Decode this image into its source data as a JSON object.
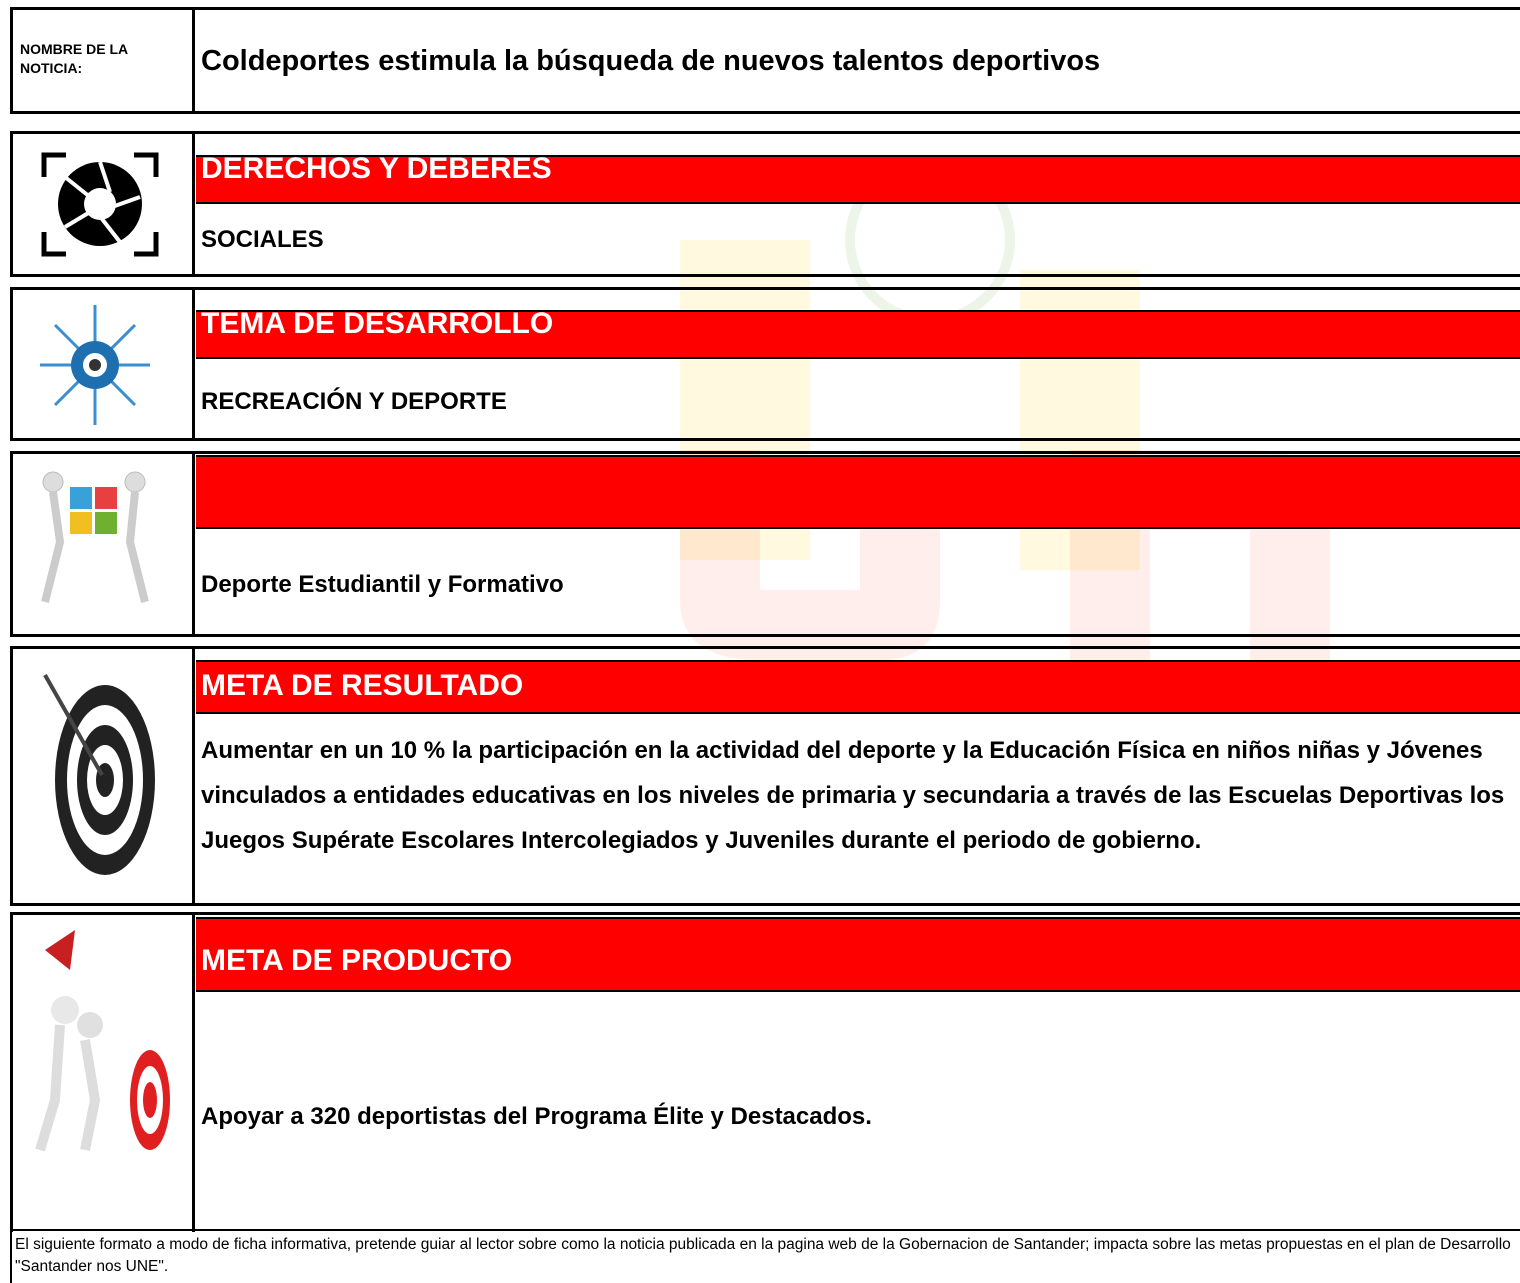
{
  "header": {
    "label": "NOMBRE DE LA NOTICIA:",
    "title": "Coldeportes estimula la búsqueda de nuevos talentos deportivos"
  },
  "sections": [
    {
      "heading": "DERECHOS Y DEBERES",
      "text": "SOCIALES"
    },
    {
      "heading": "TEMA DE DESARROLLO",
      "text": "RECREACIÓN Y DEPORTE"
    },
    {
      "text": "Deporte Estudiantil y Formativo"
    },
    {
      "heading": "META DE RESULTADO",
      "text": "Aumentar en un 10 % la participación en la actividad del deporte y la Educación Física en niños niñas y Jóvenes vinculados a entidades educativas en los niveles de primaria y secundaria a través de las Escuelas Deportivas los Juegos Supérate Escolares Intercolegiados y Juveniles durante el periodo de gobierno."
    },
    {
      "heading": "META DE PRODUCTO",
      "text": "Apoyar a 320 deportistas del Programa Élite y Destacados."
    }
  ],
  "footer": "El siguiente formato a modo de ficha informativa, pretende guiar al lector sobre como la noticia publicada en la pagina web de la Gobernacion de Santander; impacta sobre las metas propuestas en el plan de Desarrollo \"Santander nos UNE\"."
}
